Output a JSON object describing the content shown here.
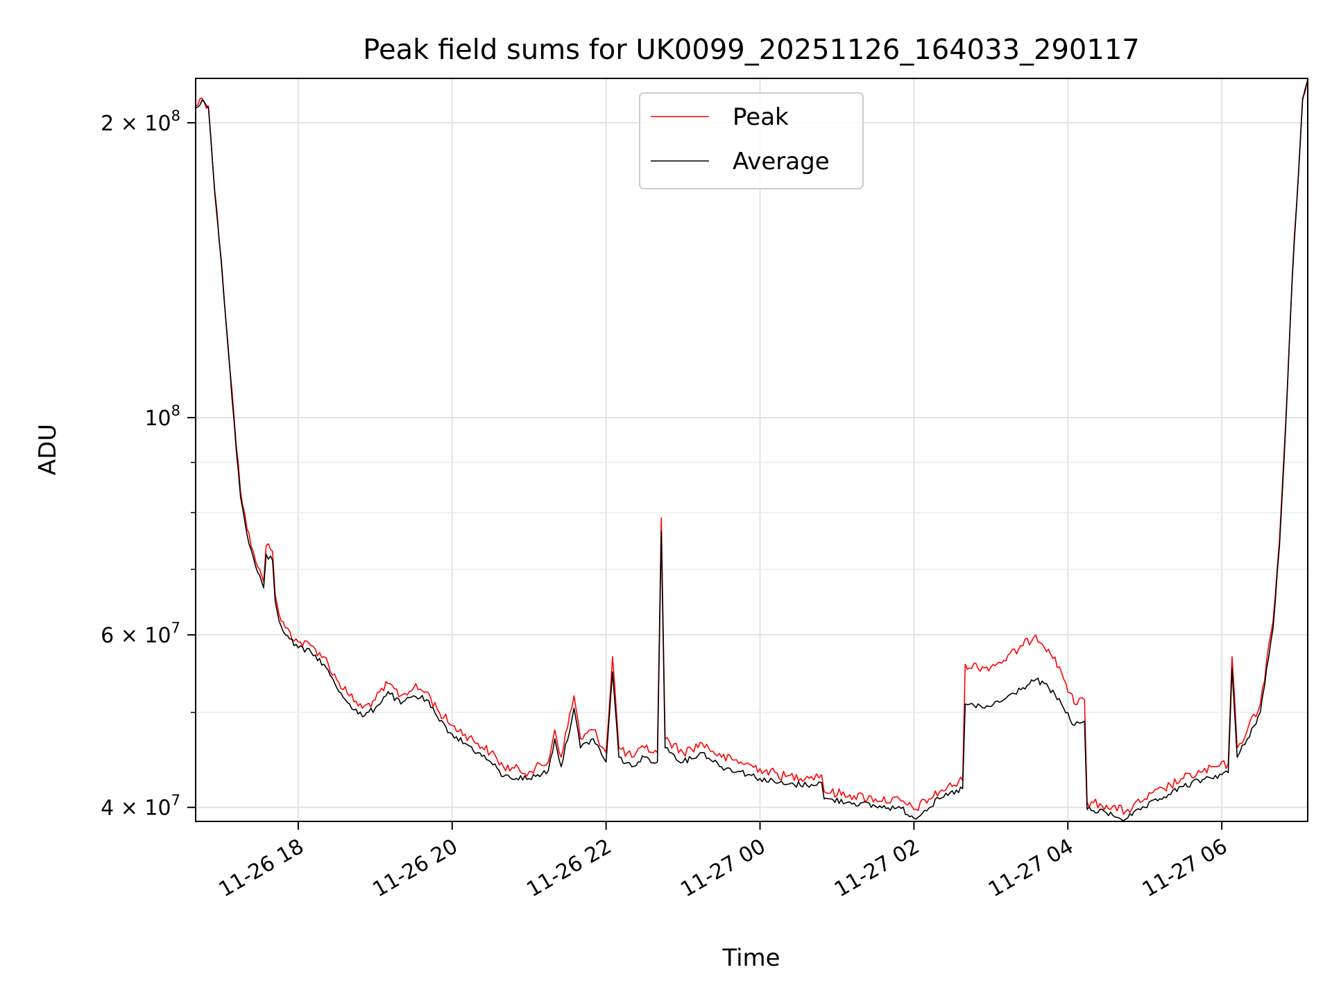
{
  "chart_data": {
    "type": "line",
    "title": "Peak field sums for UK0099_20251126_164033_290117",
    "xlabel": "Time",
    "ylabel": "ADU",
    "y_scale": "log",
    "ylim": [
      38700000,
      222000000
    ],
    "xlim": [
      "2025-11-26 16:40",
      "2025-11-27 07:07"
    ],
    "grid": true,
    "legend_position": "top-center",
    "x_ticks": [
      {
        "t": "2025-11-26 18:00",
        "label": "11-26 18"
      },
      {
        "t": "2025-11-26 20:00",
        "label": "11-26 20"
      },
      {
        "t": "2025-11-26 22:00",
        "label": "11-26 22"
      },
      {
        "t": "2025-11-27 00:00",
        "label": "11-27 00"
      },
      {
        "t": "2025-11-27 02:00",
        "label": "11-27 02"
      },
      {
        "t": "2025-11-27 04:00",
        "label": "11-27 04"
      },
      {
        "t": "2025-11-27 06:00",
        "label": "11-27 06"
      }
    ],
    "y_major_ticks": [
      {
        "v": 40000000,
        "base": "4 × 10",
        "exp": "7"
      },
      {
        "v": 60000000,
        "base": "6 × 10",
        "exp": "7"
      },
      {
        "v": 100000000,
        "base": "10",
        "exp": "8"
      },
      {
        "v": 200000000,
        "base": "2 × 10",
        "exp": "8"
      }
    ],
    "y_minor_ticks": [
      50000000,
      70000000,
      80000000,
      90000000
    ],
    "series": [
      {
        "name": "Peak",
        "color": "#ff0000",
        "points": [
          [
            "2025-11-26 16:40",
            208000000
          ],
          [
            "2025-11-26 16:45",
            212000000
          ],
          [
            "2025-11-26 16:50",
            208000000
          ],
          [
            "2025-11-26 16:55",
            170000000
          ],
          [
            "2025-11-26 17:00",
            145000000
          ],
          [
            "2025-11-26 17:05",
            120000000
          ],
          [
            "2025-11-26 17:10",
            100000000
          ],
          [
            "2025-11-26 17:15",
            84000000
          ],
          [
            "2025-11-26 17:20",
            77000000
          ],
          [
            "2025-11-26 17:25",
            73000000
          ],
          [
            "2025-11-26 17:30",
            70000000
          ],
          [
            "2025-11-26 17:33",
            68000000
          ],
          [
            "2025-11-26 17:35",
            74000000
          ],
          [
            "2025-11-26 17:40",
            73000000
          ],
          [
            "2025-11-26 17:42",
            66000000
          ],
          [
            "2025-11-26 17:45",
            63000000
          ],
          [
            "2025-11-26 17:50",
            61000000
          ],
          [
            "2025-11-26 18:00",
            59000000
          ],
          [
            "2025-11-26 18:10",
            58500000
          ],
          [
            "2025-11-26 18:20",
            57000000
          ],
          [
            "2025-11-26 18:30",
            54000000
          ],
          [
            "2025-11-26 18:40",
            52000000
          ],
          [
            "2025-11-26 18:50",
            50500000
          ],
          [
            "2025-11-26 19:00",
            51500000
          ],
          [
            "2025-11-26 19:10",
            53500000
          ],
          [
            "2025-11-26 19:20",
            52000000
          ],
          [
            "2025-11-26 19:30",
            53000000
          ],
          [
            "2025-11-26 19:40",
            52500000
          ],
          [
            "2025-11-26 19:50",
            50000000
          ],
          [
            "2025-11-26 20:00",
            48500000
          ],
          [
            "2025-11-26 20:10",
            47500000
          ],
          [
            "2025-11-26 20:20",
            46500000
          ],
          [
            "2025-11-26 20:30",
            45500000
          ],
          [
            "2025-11-26 20:40",
            44000000
          ],
          [
            "2025-11-26 21:00",
            43500000
          ],
          [
            "2025-11-26 21:15",
            44500000
          ],
          [
            "2025-11-26 21:20",
            48000000
          ],
          [
            "2025-11-26 21:25",
            45000000
          ],
          [
            "2025-11-26 21:35",
            52000000
          ],
          [
            "2025-11-26 21:40",
            47000000
          ],
          [
            "2025-11-26 21:50",
            48000000
          ],
          [
            "2025-11-26 22:00",
            45500000
          ],
          [
            "2025-11-26 22:05",
            57000000
          ],
          [
            "2025-11-26 22:10",
            46000000
          ],
          [
            "2025-11-26 22:20",
            45000000
          ],
          [
            "2025-11-26 22:30",
            46000000
          ],
          [
            "2025-11-26 22:40",
            45500000
          ],
          [
            "2025-11-26 22:43",
            79000000
          ],
          [
            "2025-11-26 22:46",
            47000000
          ],
          [
            "2025-11-26 23:00",
            45500000
          ],
          [
            "2025-11-26 23:15",
            46500000
          ],
          [
            "2025-11-26 23:30",
            45000000
          ],
          [
            "2025-11-26 23:45",
            44500000
          ],
          [
            "2025-11-27 00:00",
            43800000
          ],
          [
            "2025-11-27 00:20",
            43000000
          ],
          [
            "2025-11-27 00:40",
            43000000
          ],
          [
            "2025-11-27 00:48",
            43200000
          ],
          [
            "2025-11-27 00:50",
            41500000
          ],
          [
            "2025-11-27 01:10",
            41200000
          ],
          [
            "2025-11-27 01:30",
            40800000
          ],
          [
            "2025-11-27 01:50",
            40600000
          ],
          [
            "2025-11-27 02:00",
            39800000
          ],
          [
            "2025-11-27 02:20",
            41500000
          ],
          [
            "2025-11-27 02:38",
            42600000
          ],
          [
            "2025-11-27 02:40",
            56000000
          ],
          [
            "2025-11-27 02:55",
            55500000
          ],
          [
            "2025-11-27 03:10",
            56500000
          ],
          [
            "2025-11-27 03:25",
            58500000
          ],
          [
            "2025-11-27 03:35",
            60000000
          ],
          [
            "2025-11-27 03:45",
            58000000
          ],
          [
            "2025-11-27 03:55",
            55000000
          ],
          [
            "2025-11-27 04:05",
            51000000
          ],
          [
            "2025-11-27 04:13",
            51500000
          ],
          [
            "2025-11-27 04:15",
            40500000
          ],
          [
            "2025-11-27 04:30",
            40200000
          ],
          [
            "2025-11-27 04:45",
            39600000
          ],
          [
            "2025-11-27 05:00",
            40800000
          ],
          [
            "2025-11-27 05:15",
            41800000
          ],
          [
            "2025-11-27 05:30",
            42800000
          ],
          [
            "2025-11-27 05:45",
            43500000
          ],
          [
            "2025-11-27 06:05",
            44300000
          ],
          [
            "2025-11-27 06:08",
            57000000
          ],
          [
            "2025-11-27 06:12",
            46000000
          ],
          [
            "2025-11-27 06:20",
            48000000
          ],
          [
            "2025-11-27 06:30",
            51000000
          ],
          [
            "2025-11-27 06:40",
            62000000
          ],
          [
            "2025-11-27 06:45",
            75000000
          ],
          [
            "2025-11-27 06:50",
            100000000
          ],
          [
            "2025-11-27 06:55",
            140000000
          ],
          [
            "2025-11-27 07:00",
            180000000
          ],
          [
            "2025-11-27 07:03",
            212000000
          ],
          [
            "2025-11-27 07:07",
            222000000
          ]
        ]
      },
      {
        "name": "Average",
        "color": "#000000",
        "points": [
          [
            "2025-11-26 16:40",
            207000000
          ],
          [
            "2025-11-26 16:45",
            211000000
          ],
          [
            "2025-11-26 16:50",
            207000000
          ],
          [
            "2025-11-26 16:55",
            169000000
          ],
          [
            "2025-11-26 17:00",
            144000000
          ],
          [
            "2025-11-26 17:05",
            119000000
          ],
          [
            "2025-11-26 17:10",
            99000000
          ],
          [
            "2025-11-26 17:15",
            83000000
          ],
          [
            "2025-11-26 17:20",
            76000000
          ],
          [
            "2025-11-26 17:25",
            72000000
          ],
          [
            "2025-11-26 17:30",
            69000000
          ],
          [
            "2025-11-26 17:33",
            67000000
          ],
          [
            "2025-11-26 17:35",
            72500000
          ],
          [
            "2025-11-26 17:40",
            71500000
          ],
          [
            "2025-11-26 17:42",
            65000000
          ],
          [
            "2025-11-26 17:45",
            62000000
          ],
          [
            "2025-11-26 17:50",
            60000000
          ],
          [
            "2025-11-26 18:00",
            58200000
          ],
          [
            "2025-11-26 18:10",
            57600000
          ],
          [
            "2025-11-26 18:20",
            56000000
          ],
          [
            "2025-11-26 18:30",
            53000000
          ],
          [
            "2025-11-26 18:40",
            51000000
          ],
          [
            "2025-11-26 18:50",
            49500000
          ],
          [
            "2025-11-26 19:00",
            50500000
          ],
          [
            "2025-11-26 19:10",
            52500000
          ],
          [
            "2025-11-26 19:20",
            51000000
          ],
          [
            "2025-11-26 19:30",
            52000000
          ],
          [
            "2025-11-26 19:40",
            51500000
          ],
          [
            "2025-11-26 19:50",
            49000000
          ],
          [
            "2025-11-26 20:00",
            47500000
          ],
          [
            "2025-11-26 20:10",
            46500000
          ],
          [
            "2025-11-26 20:20",
            45500000
          ],
          [
            "2025-11-26 20:30",
            44500000
          ],
          [
            "2025-11-26 20:40",
            43000000
          ],
          [
            "2025-11-26 21:00",
            42800000
          ],
          [
            "2025-11-26 21:15",
            43600000
          ],
          [
            "2025-11-26 21:20",
            47000000
          ],
          [
            "2025-11-26 21:25",
            44000000
          ],
          [
            "2025-11-26 21:35",
            50500000
          ],
          [
            "2025-11-26 21:40",
            46000000
          ],
          [
            "2025-11-26 21:50",
            47000000
          ],
          [
            "2025-11-26 22:00",
            44500000
          ],
          [
            "2025-11-26 22:05",
            55000000
          ],
          [
            "2025-11-26 22:10",
            45000000
          ],
          [
            "2025-11-26 22:20",
            44000000
          ],
          [
            "2025-11-26 22:30",
            45000000
          ],
          [
            "2025-11-26 22:40",
            44500000
          ],
          [
            "2025-11-26 22:43",
            76500000
          ],
          [
            "2025-11-26 22:46",
            46000000
          ],
          [
            "2025-11-26 23:00",
            44500000
          ],
          [
            "2025-11-26 23:15",
            45500000
          ],
          [
            "2025-11-26 23:30",
            44000000
          ],
          [
            "2025-11-26 23:45",
            43500000
          ],
          [
            "2025-11-27 00:00",
            42800000
          ],
          [
            "2025-11-27 00:20",
            42200000
          ],
          [
            "2025-11-27 00:40",
            42200000
          ],
          [
            "2025-11-27 00:48",
            42400000
          ],
          [
            "2025-11-27 00:50",
            40800000
          ],
          [
            "2025-11-27 01:10",
            40500000
          ],
          [
            "2025-11-27 01:30",
            40100000
          ],
          [
            "2025-11-27 01:50",
            39900000
          ],
          [
            "2025-11-27 02:00",
            39000000
          ],
          [
            "2025-11-27 02:20",
            40800000
          ],
          [
            "2025-11-27 02:38",
            41800000
          ],
          [
            "2025-11-27 02:40",
            51000000
          ],
          [
            "2025-11-27 02:55",
            50500000
          ],
          [
            "2025-11-27 03:10",
            51500000
          ],
          [
            "2025-11-27 03:25",
            53000000
          ],
          [
            "2025-11-27 03:35",
            54000000
          ],
          [
            "2025-11-27 03:45",
            53000000
          ],
          [
            "2025-11-27 03:55",
            51000000
          ],
          [
            "2025-11-27 04:05",
            48500000
          ],
          [
            "2025-11-27 04:13",
            49000000
          ],
          [
            "2025-11-27 04:15",
            39800000
          ],
          [
            "2025-11-27 04:30",
            39500000
          ],
          [
            "2025-11-27 04:45",
            38900000
          ],
          [
            "2025-11-27 05:00",
            40000000
          ],
          [
            "2025-11-27 05:15",
            41000000
          ],
          [
            "2025-11-27 05:30",
            42000000
          ],
          [
            "2025-11-27 05:45",
            42700000
          ],
          [
            "2025-11-27 06:05",
            43400000
          ],
          [
            "2025-11-27 06:08",
            55500000
          ],
          [
            "2025-11-27 06:12",
            45000000
          ],
          [
            "2025-11-27 06:20",
            47000000
          ],
          [
            "2025-11-27 06:30",
            50000000
          ],
          [
            "2025-11-27 06:40",
            61000000
          ],
          [
            "2025-11-27 06:45",
            74000000
          ],
          [
            "2025-11-27 06:50",
            99000000
          ],
          [
            "2025-11-27 06:55",
            139000000
          ],
          [
            "2025-11-27 07:00",
            179000000
          ],
          [
            "2025-11-27 07:03",
            211000000
          ],
          [
            "2025-11-27 07:07",
            221000000
          ]
        ]
      }
    ]
  }
}
